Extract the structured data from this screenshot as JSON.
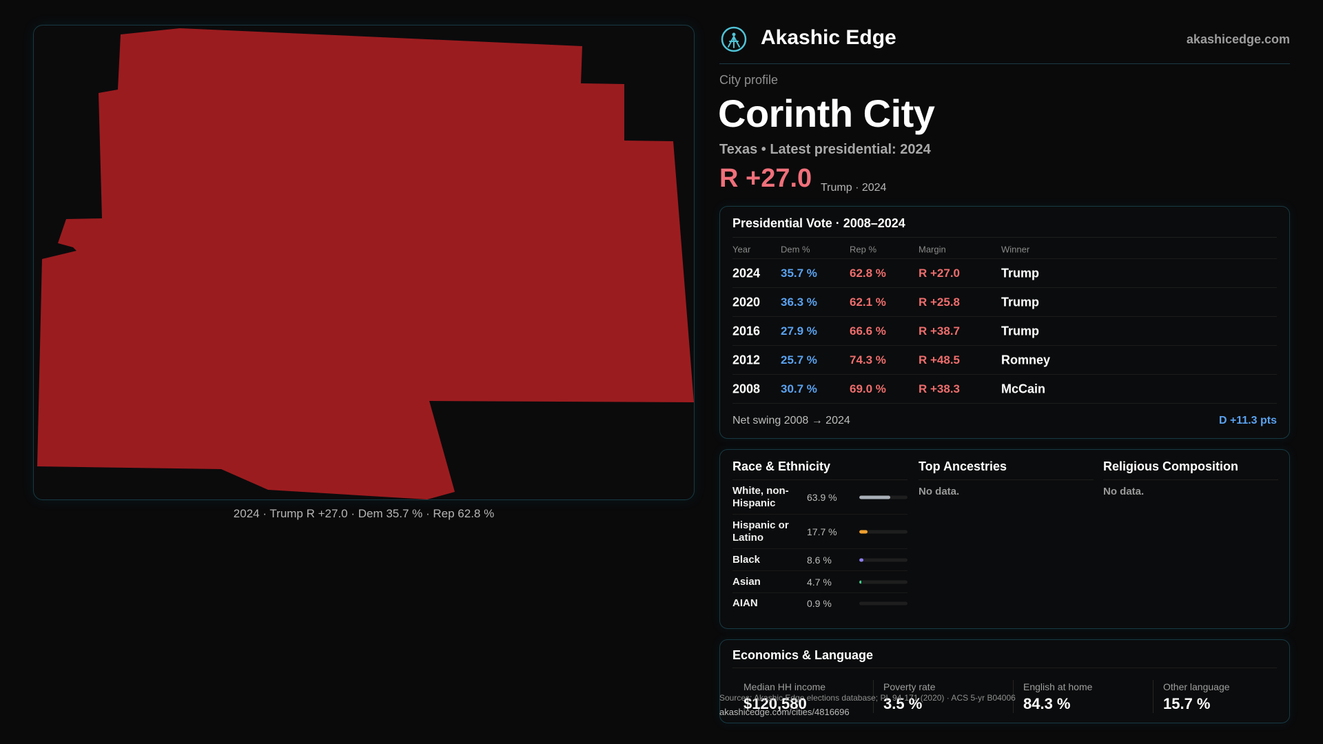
{
  "map": {
    "fill_color": "#9b1c1f",
    "caption": "2024 · Trump R +27.0 · Dem 35.7 % · Rep 62.8 %"
  },
  "header": {
    "brand": "Akashic Edge",
    "logo_icon": "compass-icon",
    "url": "akashicedge.com"
  },
  "profile": {
    "eyebrow": "City profile",
    "city": "Corinth City",
    "subtitle": "Texas • Latest presidential: 2024",
    "margin": "R +27.0",
    "margin_note": "Trump · 2024"
  },
  "vote": {
    "title": "Presidential Vote · 2008–2024",
    "columns": {
      "year": "Year",
      "dem": "Dem %",
      "rep": "Rep %",
      "margin": "Margin",
      "winner": "Winner"
    },
    "rows": [
      {
        "year": "2024",
        "dem": "35.7 %",
        "rep": "62.8 %",
        "margin": "R +27.0",
        "winner": "Trump"
      },
      {
        "year": "2020",
        "dem": "36.3 %",
        "rep": "62.1 %",
        "margin": "R +25.8",
        "winner": "Trump"
      },
      {
        "year": "2016",
        "dem": "27.9 %",
        "rep": "66.6 %",
        "margin": "R +38.7",
        "winner": "Trump"
      },
      {
        "year": "2012",
        "dem": "25.7 %",
        "rep": "74.3 %",
        "margin": "R +48.5",
        "winner": "Romney"
      },
      {
        "year": "2008",
        "dem": "30.7 %",
        "rep": "69.0 %",
        "margin": "R +38.3",
        "winner": "McCain"
      }
    ],
    "swing_label": "Net swing 2008 → 2024",
    "swing_value": "D +11.3 pts"
  },
  "demographics": {
    "race_title": "Race & Ethnicity",
    "race": [
      {
        "label": "White, non-Hispanic",
        "pct": "63.9 %",
        "fraction": 0.639,
        "color": "#aab0b8"
      },
      {
        "label": "Hispanic or Latino",
        "pct": "17.7 %",
        "fraction": 0.177,
        "color": "#f0a030"
      },
      {
        "label": "Black",
        "pct": "8.6 %",
        "fraction": 0.086,
        "color": "#8d7cf0"
      },
      {
        "label": "Asian",
        "pct": "4.7 %",
        "fraction": 0.047,
        "color": "#3fcf8e"
      },
      {
        "label": "AIAN",
        "pct": "0.9 %",
        "fraction": 0.009,
        "color": "#e0707a"
      }
    ],
    "ancestry_title": "Top Ancestries",
    "ancestry_text": "No data.",
    "religion_title": "Religious Composition",
    "religion_text": "No data."
  },
  "economics": {
    "title": "Economics & Language",
    "stats": [
      {
        "label": "Median HH income",
        "value": "$120,580"
      },
      {
        "label": "Poverty rate",
        "value": "3.5 %"
      },
      {
        "label": "English at home",
        "value": "84.3 %"
      },
      {
        "label": "Other language",
        "value": "15.7 %"
      }
    ]
  },
  "footer": {
    "source": "Sources: Akashic Edge elections database; PL 94-171 (2020) · ACS 5-yr B04006",
    "url": "akashicedge.com/cities/4816696"
  }
}
